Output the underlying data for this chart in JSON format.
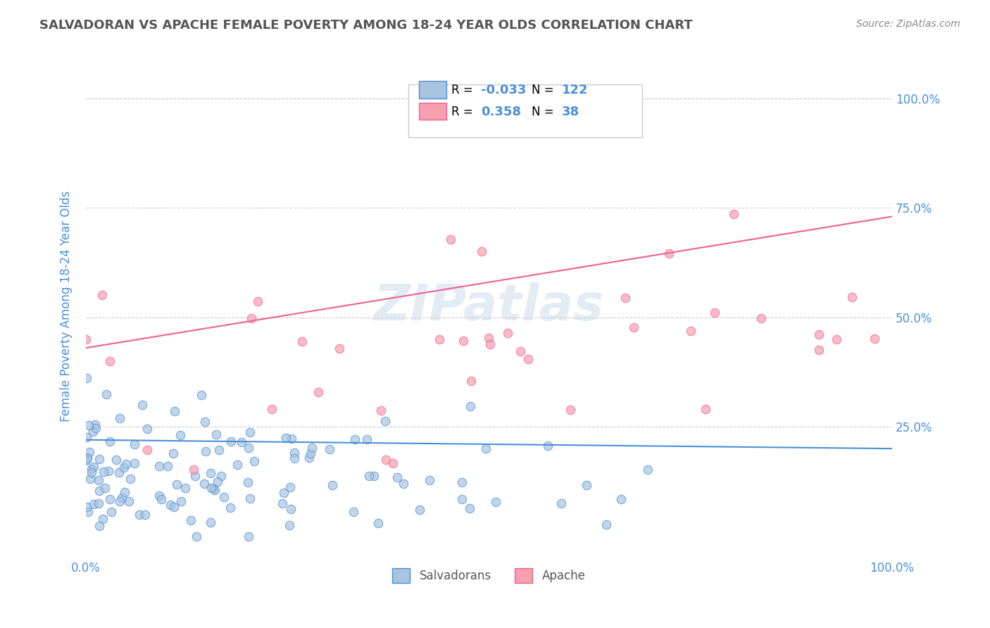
{
  "title": "SALVADORAN VS APACHE FEMALE POVERTY AMONG 18-24 YEAR OLDS CORRELATION CHART",
  "source": "Source: ZipAtlas.com",
  "xlabel": "",
  "ylabel": "Female Poverty Among 18-24 Year Olds",
  "xlim": [
    0.0,
    1.0
  ],
  "ylim": [
    -0.05,
    1.1
  ],
  "xtick_labels": [
    "0.0%",
    "100.0%"
  ],
  "ytick_labels": [
    "25.0%",
    "50.0%",
    "75.0%",
    "100.0%"
  ],
  "ytick_positions": [
    0.25,
    0.5,
    0.75,
    1.0
  ],
  "legend_r1": "R = -0.033",
  "legend_n1": "N = 122",
  "legend_r2": "R =  0.358",
  "legend_n2": "N =  38",
  "salvadoran_color": "#a8c4e0",
  "apache_color": "#f4a0b0",
  "salvadoran_line_color": "#4a90d9",
  "apache_line_color": "#f06090",
  "watermark": "ZIPatlas",
  "background_color": "#ffffff",
  "grid_color": "#cccccc",
  "title_color": "#555555",
  "axis_label_color": "#4a90d9",
  "right_ytick_color": "#4a90d9",
  "salvadoran_seed": 42,
  "apache_seed": 7,
  "salvadoran_R": -0.033,
  "apache_R": 0.358,
  "salvadoran_N": 122,
  "apache_N": 38
}
